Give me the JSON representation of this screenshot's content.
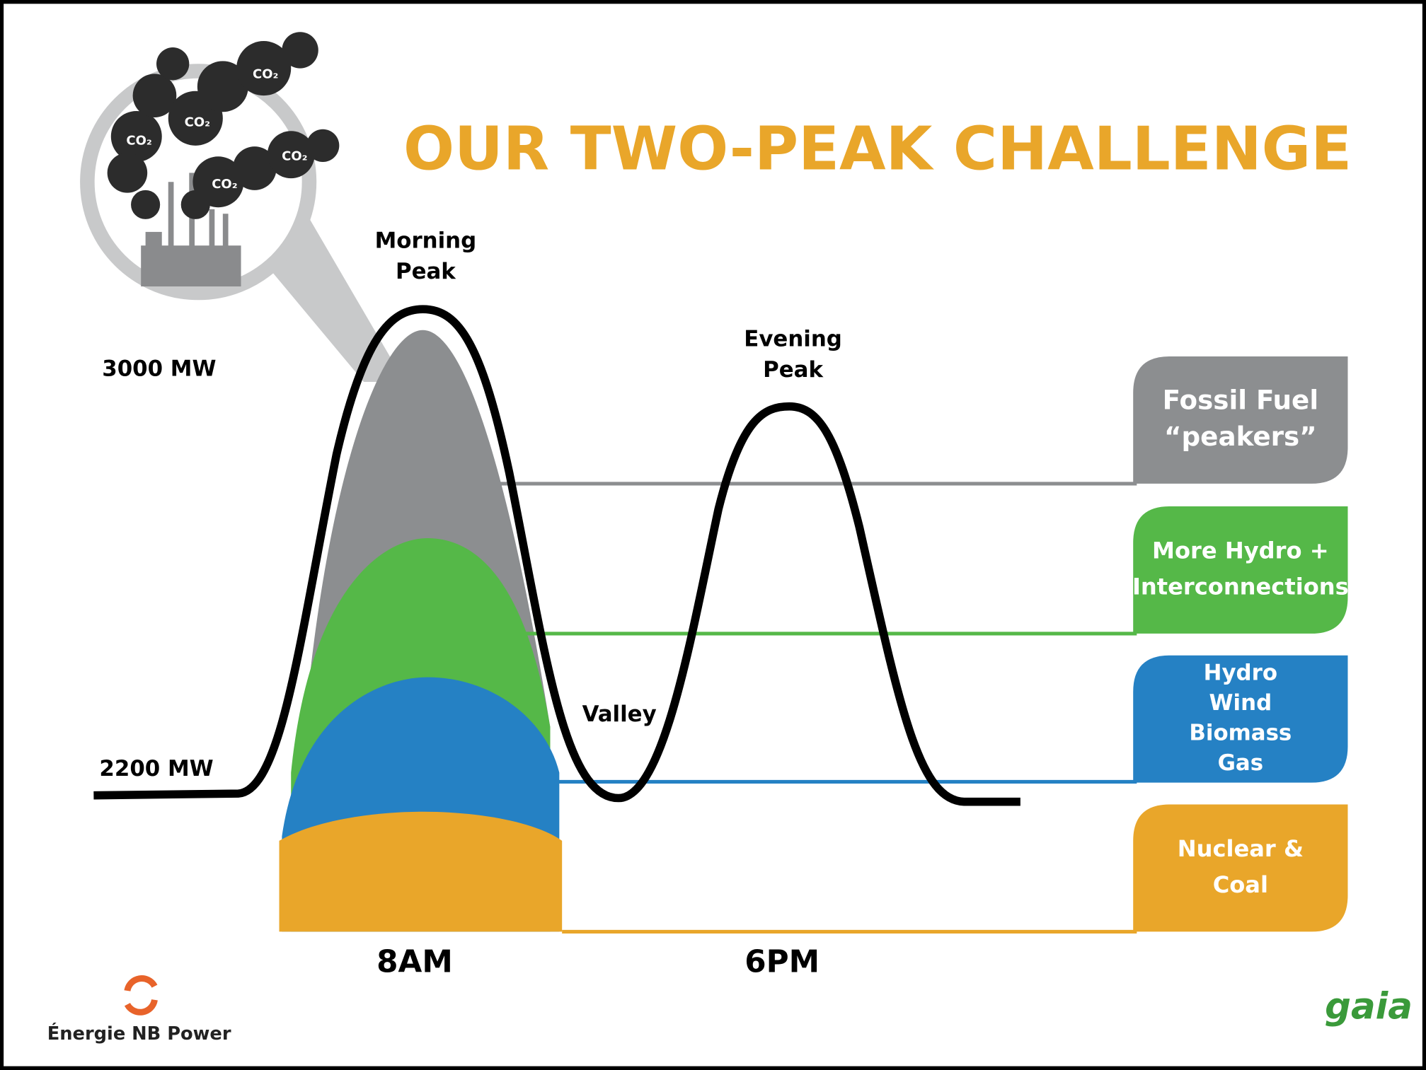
{
  "title": "OUR TWO-PEAK CHALLENGE",
  "levels": [
    "3000 MW",
    "2200 MW"
  ],
  "peaks": {
    "morning": [
      "Morning",
      "Peak"
    ],
    "evening": [
      "Evening",
      "Peak"
    ],
    "valley": "Valley"
  },
  "times": [
    "8AM",
    "6PM"
  ],
  "sources": [
    {
      "lines": [
        "Fossil Fuel",
        "“peakers”"
      ],
      "color": "#8c8e90"
    },
    {
      "lines": [
        "More Hydro +",
        "Interconnections"
      ],
      "color": "#55b848"
    },
    {
      "lines": [
        "Hydro",
        "Wind",
        "Biomass",
        "Gas"
      ],
      "color": "#2581c4"
    },
    {
      "lines": [
        "Nuclear &",
        "Coal"
      ],
      "color": "#e9a62a"
    }
  ],
  "emissions": [
    "CO₂",
    "CO₂",
    "CO₂",
    "CO₂",
    "CO₂"
  ],
  "logos": {
    "utility": "Énergie NB Power",
    "partner": "gaia"
  }
}
